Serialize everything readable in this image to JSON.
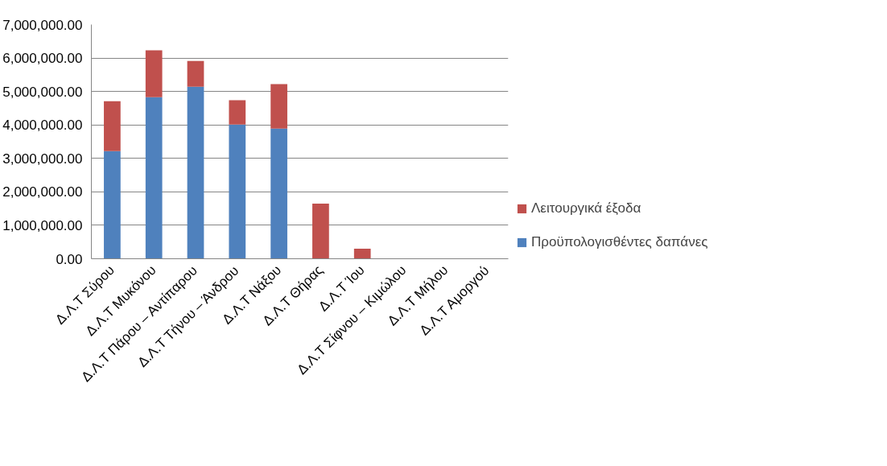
{
  "chart_data": {
    "type": "bar",
    "stacked": true,
    "categories": [
      "Δ.Λ.Τ Σύρου",
      "Δ.Λ.Τ Μυκόνου",
      "Δ.Λ.Τ Πάρου – Αντίπαρου",
      "Δ.Λ.Τ Τήνου – Άνδρου",
      "Δ.Λ.Τ Νάξου",
      "Δ.Λ.Τ Θήρας",
      "Δ.Λ.Τ Ίου",
      "Δ.Λ.Τ Σίφνου – Κιμώλου",
      "Δ.Λ.Τ Μήλου",
      "Δ.Λ.Τ Αμοργού"
    ],
    "series": [
      {
        "name": "Προϋπολογισθέντες δαπάνες",
        "color": "#4f81bd",
        "values": [
          3220000,
          4830000,
          5140000,
          4010000,
          3890000,
          0,
          0,
          0,
          0,
          0
        ]
      },
      {
        "name": "Λειτουργικά έξοδα",
        "color": "#c0504d",
        "values": [
          1490000,
          1400000,
          770000,
          730000,
          1330000,
          1650000,
          300000,
          0,
          0,
          0
        ]
      }
    ],
    "ylim": [
      0,
      7000000
    ],
    "yticks": [
      {
        "value": 0,
        "label": "0.00"
      },
      {
        "value": 1000000,
        "label": "1,000,000.00"
      },
      {
        "value": 2000000,
        "label": "2,000,000.00"
      },
      {
        "value": 3000000,
        "label": "3,000,000.00"
      },
      {
        "value": 4000000,
        "label": "4,000,000.00"
      },
      {
        "value": 5000000,
        "label": "5,000,000.00"
      },
      {
        "value": 6000000,
        "label": "6,000,000.00"
      },
      {
        "value": 7000000,
        "label": "7,000,000.00"
      }
    ],
    "grid": "y",
    "legend": "right"
  }
}
